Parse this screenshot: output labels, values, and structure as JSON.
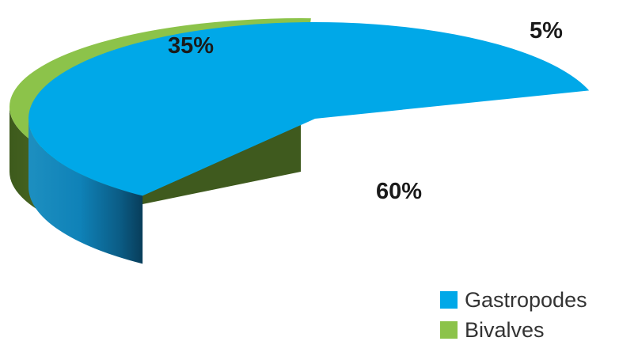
{
  "chart_data": {
    "type": "pie",
    "style": "3d-exploded",
    "slices": [
      {
        "name": "Gastropodes",
        "value": 60,
        "label": "60%",
        "color": "#00a8e8",
        "in_legend": true
      },
      {
        "name": "",
        "value": 5,
        "label": "5%",
        "color": "#e8060b",
        "in_legend": false
      },
      {
        "name": "Bivalves",
        "value": 35,
        "label": "35%",
        "color": "#8cc34a",
        "in_legend": true
      }
    ],
    "legend_position": "bottom-right",
    "legend": [
      "Gastropodes",
      "Bivalves"
    ]
  }
}
